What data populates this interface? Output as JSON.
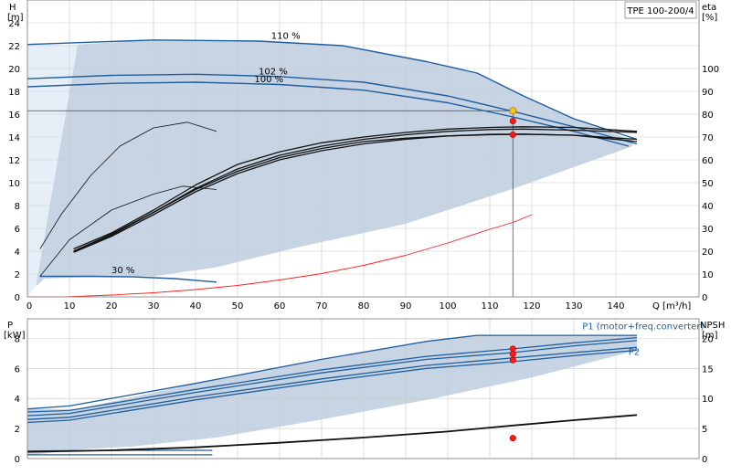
{
  "title": "TPE 100-200/4",
  "chart_data": [
    {
      "type": "line",
      "name": "head-efficiency",
      "xlabel": "Q [m³/h]",
      "xlim": [
        0,
        150
      ],
      "x_ticks": [
        0,
        10,
        20,
        30,
        40,
        50,
        60,
        70,
        80,
        90,
        100,
        110,
        120,
        130,
        140
      ],
      "left_axis": {
        "label_top": "H",
        "label_unit": "[m]",
        "lim": [
          0,
          26
        ],
        "ticks": [
          0,
          2,
          4,
          6,
          8,
          10,
          12,
          14,
          16,
          18,
          20,
          22,
          24
        ]
      },
      "right_axis": {
        "label_top": "eta",
        "label_unit": "[%]",
        "lim": [
          0,
          130
        ],
        "ticks": [
          0,
          10,
          20,
          30,
          40,
          50,
          60,
          70,
          80,
          90,
          100
        ]
      },
      "grid": true,
      "curve_labels": [
        {
          "text": "110 %",
          "x": 58,
          "y": 22.6
        },
        {
          "text": "102 %",
          "x": 55,
          "y": 19.5
        },
        {
          "text": "100 %",
          "x": 54,
          "y": 18.8
        },
        {
          "text": "30 %",
          "x": 20,
          "y": 2.1
        }
      ],
      "operating_point": {
        "Q": 115.5,
        "H": 16.3,
        "eta_head": 15.4,
        "eta": 71
      },
      "hline": {
        "y": 16.3,
        "x_from": 0,
        "x_to": 115.5
      },
      "envelope_light": [
        [
          0,
          22.1
        ],
        [
          12,
          22.1
        ],
        [
          8,
          10
        ],
        [
          3,
          1.5
        ],
        [
          0,
          0
        ]
      ],
      "envelope_main": [
        [
          12,
          22.1
        ],
        [
          30,
          22.5
        ],
        [
          55,
          22.4
        ],
        [
          75,
          22
        ],
        [
          95,
          20.6
        ],
        [
          107,
          19.6
        ],
        [
          118,
          17.6
        ],
        [
          130,
          15.6
        ],
        [
          144,
          13.7
        ],
        [
          144,
          13.2
        ],
        [
          115,
          9.4
        ],
        [
          90,
          6.4
        ],
        [
          65,
          4.4
        ],
        [
          45,
          2.6
        ],
        [
          30,
          1.8
        ],
        [
          12,
          1.7
        ],
        [
          4,
          1.6
        ],
        [
          2,
          0.9
        ]
      ],
      "series": [
        {
          "name": "",
          "role": "head",
          "points": [
            [
              0,
              22.1
            ],
            [
              30,
              22.5
            ],
            [
              55,
              22.4
            ],
            [
              75,
              22
            ],
            [
              95,
              20.6
            ],
            [
              107,
              19.6
            ],
            [
              118,
              17.6
            ],
            [
              130,
              15.6
            ],
            [
              145,
              13.8
            ]
          ]
        },
        {
          "name": "",
          "role": "head",
          "points": [
            [
              0,
              19.1
            ],
            [
              20,
              19.4
            ],
            [
              40,
              19.5
            ],
            [
              60,
              19.3
            ],
            [
              80,
              18.8
            ],
            [
              100,
              17.6
            ],
            [
              115,
              16.3
            ],
            [
              130,
              14.9
            ],
            [
              145,
              13.4
            ]
          ]
        },
        {
          "name": "",
          "role": "head",
          "points": [
            [
              0,
              18.4
            ],
            [
              20,
              18.7
            ],
            [
              40,
              18.8
            ],
            [
              60,
              18.6
            ],
            [
              80,
              18.1
            ],
            [
              100,
              17.0
            ],
            [
              115,
              15.8
            ],
            [
              130,
              14.5
            ],
            [
              143,
              13.2
            ]
          ]
        },
        {
          "name": "",
          "role": "head",
          "points": [
            [
              3,
              1.8
            ],
            [
              15,
              1.8
            ],
            [
              25,
              1.75
            ],
            [
              35,
              1.6
            ],
            [
              45,
              1.3
            ]
          ]
        },
        {
          "name": "",
          "role": "eta",
          "points": [
            [
              11,
              21
            ],
            [
              20,
              28
            ],
            [
              30,
              38
            ],
            [
              40,
              49
            ],
            [
              50,
              58
            ],
            [
              60,
              63.5
            ],
            [
              70,
              67.5
            ],
            [
              80,
              70
            ],
            [
              90,
              72
            ],
            [
              100,
              73.5
            ],
            [
              110,
              74.2
            ],
            [
              118,
              74.5
            ],
            [
              130,
              74.2
            ],
            [
              145,
              72.5
            ]
          ]
        },
        {
          "name": "",
          "role": "eta",
          "points": [
            [
              11,
              20
            ],
            [
              20,
              27
            ],
            [
              30,
              37
            ],
            [
              40,
              47.5
            ],
            [
              50,
              56
            ],
            [
              60,
              62
            ],
            [
              70,
              66
            ],
            [
              80,
              69
            ],
            [
              90,
              71
            ],
            [
              100,
              72.5
            ],
            [
              110,
              73.3
            ],
            [
              118,
              73.5
            ],
            [
              130,
              73
            ],
            [
              145,
              72
            ]
          ]
        },
        {
          "name": "",
          "role": "eta",
          "points": [
            [
              11,
              20
            ],
            [
              20,
              27.5
            ],
            [
              30,
              37
            ],
            [
              40,
              47
            ],
            [
              50,
              55
            ],
            [
              60,
              61
            ],
            [
              70,
              65
            ],
            [
              80,
              68
            ],
            [
              90,
              69.5
            ],
            [
              100,
              70.5
            ],
            [
              110,
              71.2
            ],
            [
              118,
              71.3
            ],
            [
              130,
              70.8
            ],
            [
              145,
              68
            ]
          ]
        },
        {
          "name": "",
          "role": "eta",
          "points": [
            [
              11,
              19.5
            ],
            [
              20,
              26.5
            ],
            [
              30,
              36
            ],
            [
              40,
              46
            ],
            [
              50,
              54
            ],
            [
              60,
              60
            ],
            [
              70,
              64
            ],
            [
              80,
              67
            ],
            [
              90,
              69
            ],
            [
              100,
              70.5
            ],
            [
              110,
              71
            ],
            [
              118,
              71.2
            ],
            [
              130,
              70.8
            ],
            [
              145,
              69
            ]
          ]
        },
        {
          "name": "",
          "role": "eta-part",
          "points": [
            [
              3,
              21
            ],
            [
              8,
              36
            ],
            [
              15,
              53
            ],
            [
              22,
              66
            ],
            [
              30,
              74
            ],
            [
              38,
              76.5
            ],
            [
              45,
              72.5
            ]
          ]
        },
        {
          "name": "",
          "role": "eta-part",
          "points": [
            [
              3,
              9
            ],
            [
              10,
              25
            ],
            [
              20,
              38
            ],
            [
              30,
              45
            ],
            [
              37,
              48.5
            ],
            [
              45,
              47
            ]
          ]
        },
        {
          "name": "",
          "role": "npsh-system",
          "points": [
            [
              0,
              0
            ],
            [
              10,
              0.1
            ],
            [
              20,
              0.8
            ],
            [
              30,
              1.8
            ],
            [
              40,
              3.2
            ],
            [
              50,
              5.0
            ],
            [
              60,
              7.4
            ],
            [
              70,
              10.2
            ],
            [
              80,
              13.8
            ],
            [
              90,
              18.2
            ],
            [
              100,
              23.6
            ],
            [
              110,
              29.6
            ],
            [
              115.5,
              32.6
            ],
            [
              120,
              36
            ]
          ]
        }
      ]
    },
    {
      "type": "line",
      "name": "power-npsh",
      "xlim": [
        0,
        150
      ],
      "left_axis": {
        "label_top": "P",
        "label_unit": "[kW]",
        "lim": [
          0,
          9.3
        ],
        "ticks": [
          0,
          2,
          4,
          6,
          8
        ]
      },
      "right_axis": {
        "label_top": "NPSH",
        "label_unit": "[m]",
        "lim": [
          0,
          23.25
        ],
        "ticks": [
          0,
          5,
          10,
          15,
          20
        ]
      },
      "grid": true,
      "series_labels": [
        {
          "text": "P1 (motor+freq.converter)",
          "x": 132,
          "y": 8.6
        },
        {
          "text": "P2",
          "x": 143,
          "y": 6.9
        }
      ],
      "operating_point": {
        "Q": 115.5,
        "P_values": [
          7.3,
          6.95,
          6.55
        ],
        "NPSH": 3.4
      },
      "envelope": [
        [
          0,
          3.3
        ],
        [
          12,
          3.3
        ],
        [
          40,
          5.0
        ],
        [
          70,
          6.6
        ],
        [
          95,
          7.8
        ],
        [
          107,
          8.2
        ],
        [
          145,
          8.2
        ],
        [
          145,
          7.2
        ],
        [
          120,
          5.4
        ],
        [
          95,
          3.9
        ],
        [
          70,
          2.6
        ],
        [
          45,
          1.4
        ],
        [
          25,
          0.8
        ],
        [
          12,
          0.6
        ],
        [
          0,
          0.2
        ]
      ],
      "series": [
        {
          "name": "",
          "role": "power",
          "points": [
            [
              0,
              3.3
            ],
            [
              10,
              3.5
            ],
            [
              40,
              5.0
            ],
            [
              70,
              6.6
            ],
            [
              95,
              7.8
            ],
            [
              107,
              8.2
            ],
            [
              125,
              8.2
            ],
            [
              145,
              8.2
            ]
          ]
        },
        {
          "name": "",
          "role": "power",
          "points": [
            [
              0,
              3.1
            ],
            [
              10,
              3.2
            ],
            [
              40,
              4.6
            ],
            [
              70,
              5.9
            ],
            [
              95,
              6.8
            ],
            [
              115.5,
              7.3
            ],
            [
              130,
              7.7
            ],
            [
              145,
              8.05
            ]
          ]
        },
        {
          "name": "",
          "role": "power",
          "points": [
            [
              0,
              2.85
            ],
            [
              10,
              3.0
            ],
            [
              40,
              4.4
            ],
            [
              70,
              5.7
            ],
            [
              95,
              6.6
            ],
            [
              115.5,
              7.05
            ],
            [
              130,
              7.5
            ],
            [
              145,
              7.85
            ]
          ]
        },
        {
          "name": "",
          "role": "power",
          "points": [
            [
              0,
              2.6
            ],
            [
              10,
              2.75
            ],
            [
              40,
              4.1
            ],
            [
              70,
              5.3
            ],
            [
              95,
              6.2
            ],
            [
              115.5,
              6.7
            ],
            [
              130,
              7.05
            ],
            [
              145,
              7.4
            ]
          ]
        },
        {
          "name": "",
          "role": "power",
          "points": [
            [
              0,
              2.4
            ],
            [
              10,
              2.55
            ],
            [
              40,
              3.9
            ],
            [
              70,
              5.1
            ],
            [
              95,
              6.0
            ],
            [
              115.5,
              6.45
            ],
            [
              130,
              6.85
            ],
            [
              145,
              7.2
            ]
          ]
        },
        {
          "name": "",
          "role": "power-low",
          "points": [
            [
              0,
              0.5
            ],
            [
              10,
              0.52
            ],
            [
              25,
              0.55
            ],
            [
              44,
              0.55
            ]
          ]
        },
        {
          "name": "",
          "role": "power-low",
          "points": [
            [
              0,
              0.25
            ],
            [
              10,
              0.25
            ],
            [
              25,
              0.25
            ],
            [
              44,
              0.25
            ]
          ]
        },
        {
          "name": "",
          "role": "npsh",
          "points": [
            [
              0,
              0.45
            ],
            [
              20,
              0.55
            ],
            [
              40,
              0.75
            ],
            [
              60,
              1.05
            ],
            [
              80,
              1.4
            ],
            [
              100,
              1.8
            ],
            [
              115.5,
              2.2
            ],
            [
              130,
              2.55
            ],
            [
              145,
              2.9
            ]
          ]
        }
      ]
    }
  ],
  "colors": {
    "envelope": "#c7d4e4",
    "envelope_light": "#e6eff8",
    "curve_blue": "#1f5fa0",
    "curve_black": "#111111",
    "system_red": "#ff2020",
    "marker_red": "#ff1a1a",
    "marker_yellow": "#f5c518"
  }
}
